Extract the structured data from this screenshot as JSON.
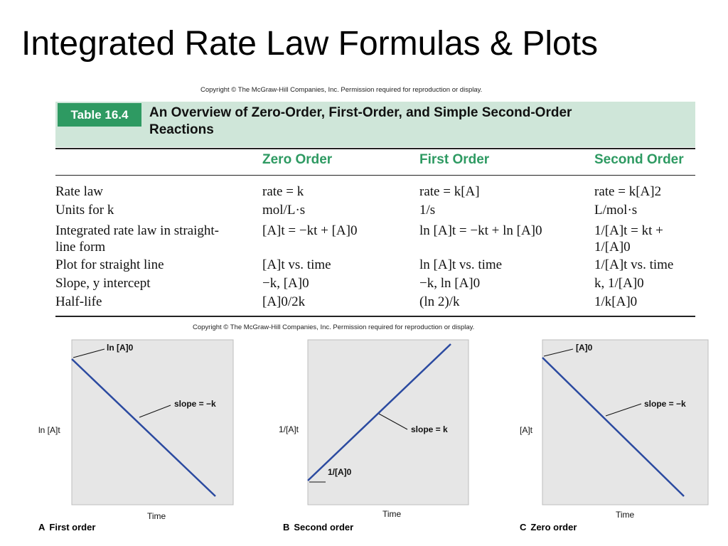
{
  "slide_title": "Integrated Rate Law Formulas & Plots",
  "copyright": "Copyright © The McGraw-Hill Companies, Inc. Permission required for reproduction or display.",
  "table": {
    "label": "Table 16.4",
    "title": "An Overview of Zero-Order, First-Order, and Simple Second-Order Reactions",
    "columns": [
      "Zero Order",
      "First Order",
      "Second Order"
    ],
    "rows": [
      {
        "label": "Rate law",
        "zero": "rate = k",
        "first": "rate = k[A]",
        "second": "rate = k[A]2"
      },
      {
        "label": "Units for k",
        "zero": "mol/L·s",
        "first": "1/s",
        "second": "L/mol·s"
      },
      {
        "label": "Integrated rate law in straight-line form",
        "zero": "[A]t = −kt + [A]0",
        "first": "ln [A]t = −kt + ln [A]0",
        "second": "1/[A]t = kt + 1/[A]0"
      },
      {
        "label": "Plot for straight line",
        "zero": "[A]t vs. time",
        "first": "ln [A]t vs. time",
        "second": "1/[A]t vs. time"
      },
      {
        "label": "Slope, y intercept",
        "zero": "−k, [A]0",
        "first": "−k, ln [A]0",
        "second": "k, 1/[A]0"
      },
      {
        "label": "Half-life",
        "zero": "[A]0/2k",
        "first": "(ln 2)/k",
        "second": "1/k[A]0"
      }
    ]
  },
  "plots": [
    {
      "letter": "A",
      "caption": "First order",
      "ylabel": "ln [A]t",
      "xlabel": "Time",
      "intercept_label": "ln [A]0",
      "slope_label": "slope = −k",
      "direction": "decreasing"
    },
    {
      "letter": "B",
      "caption": "Second order",
      "ylabel": "1/[A]t",
      "xlabel": "Time",
      "intercept_label": "1/[A]0",
      "slope_label": "slope = k",
      "direction": "increasing"
    },
    {
      "letter": "C",
      "caption": "Zero order",
      "ylabel": "[A]t",
      "xlabel": "Time",
      "intercept_label": "[A]0",
      "slope_label": "slope = −k",
      "direction": "decreasing"
    }
  ],
  "colors": {
    "table_green": "#2e9a62",
    "band": "#cfe6d9",
    "plot_bg": "#e6e6e6",
    "line": "#2b4aa0"
  }
}
